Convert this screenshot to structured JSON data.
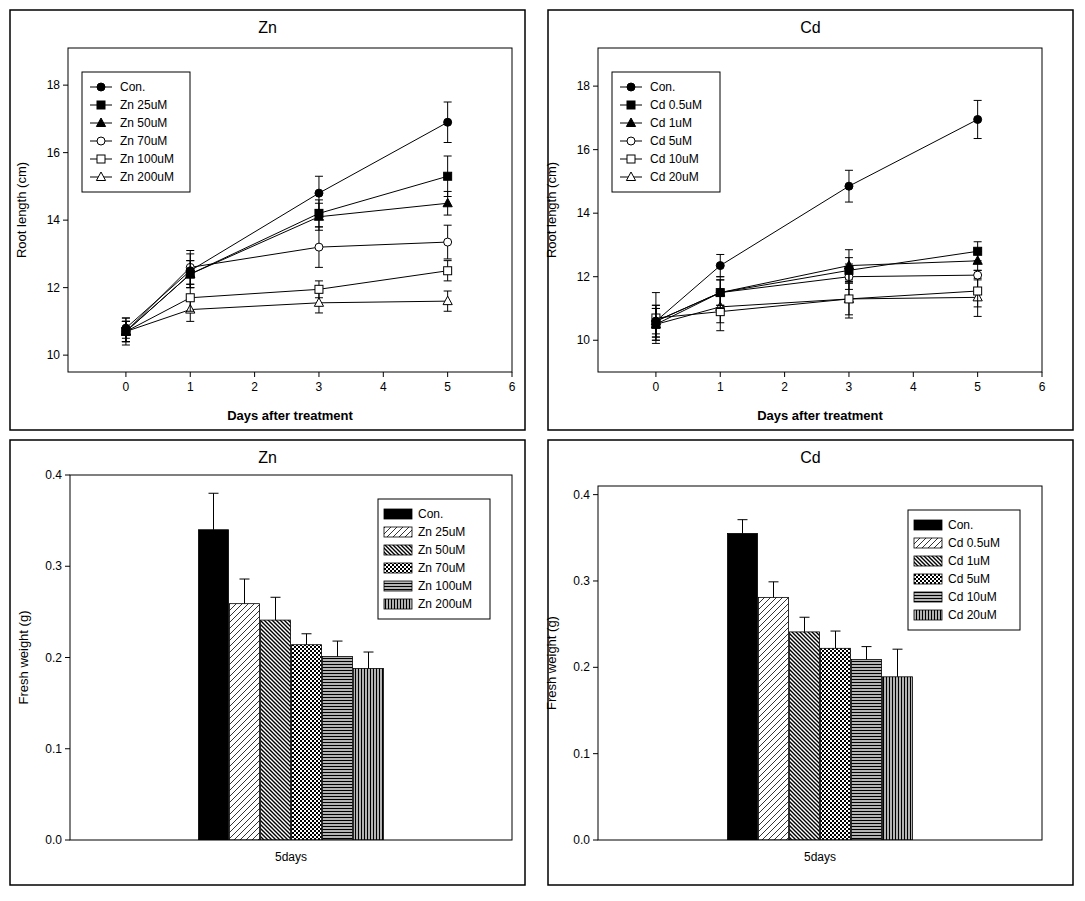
{
  "chart_data": [
    {
      "type": "line",
      "title": "Zn",
      "xlabel": "Days after treatment",
      "ylabel": "Root length (cm)",
      "x": [
        0,
        1,
        3,
        5
      ],
      "xlim": [
        -0.9,
        6
      ],
      "xticks": [
        0,
        1,
        2,
        3,
        4,
        5,
        6
      ],
      "ylim": [
        9.5,
        19.1
      ],
      "yticks": [
        10,
        12,
        14,
        16,
        18
      ],
      "legend": "upper left",
      "series": [
        {
          "name": "Con.",
          "color": "#000000",
          "marker": "circle",
          "values": [
            10.8,
            12.5,
            14.8,
            16.9
          ],
          "errors": [
            0.3,
            0.5,
            0.5,
            0.6
          ]
        },
        {
          "name": "Zn 25uM",
          "color": "#000000",
          "marker": "square",
          "values": [
            10.7,
            12.4,
            14.2,
            15.3
          ],
          "errors": [
            0.3,
            0.4,
            0.4,
            0.6
          ]
        },
        {
          "name": "Zn 50uM",
          "color": "#000000",
          "marker": "triangle",
          "values": [
            10.7,
            12.4,
            14.1,
            14.5
          ],
          "errors": [
            0.3,
            0.4,
            0.4,
            0.35
          ]
        },
        {
          "name": "Zn 70uM",
          "color": "#000000",
          "marker": "open-circle",
          "values": [
            10.7,
            12.6,
            13.2,
            13.35
          ],
          "errors": [
            0.3,
            0.5,
            0.6,
            0.5
          ]
        },
        {
          "name": "Zn 100uM",
          "color": "#000000",
          "marker": "open-square",
          "values": [
            10.7,
            11.7,
            11.95,
            12.5
          ],
          "errors": [
            0.3,
            0.4,
            0.25,
            0.3
          ]
        },
        {
          "name": "Zn 200uM",
          "color": "#000000",
          "marker": "open-triangle",
          "values": [
            10.7,
            11.35,
            11.55,
            11.6
          ],
          "errors": [
            0.4,
            0.35,
            0.3,
            0.3
          ]
        }
      ]
    },
    {
      "type": "line",
      "title": "Cd",
      "xlabel": "Days after treatment",
      "ylabel": "Root length (cm)",
      "x": [
        0,
        1,
        3,
        5
      ],
      "xlim": [
        -0.9,
        6
      ],
      "xticks": [
        0,
        1,
        2,
        3,
        4,
        5,
        6
      ],
      "ylim": [
        9,
        19.2
      ],
      "yticks": [
        10,
        12,
        14,
        16,
        18
      ],
      "legend": "upper left",
      "series": [
        {
          "name": "Con.",
          "color": "#000000",
          "marker": "circle",
          "values": [
            10.6,
            12.35,
            14.85,
            16.95
          ],
          "errors": [
            0.5,
            0.35,
            0.5,
            0.6
          ]
        },
        {
          "name": "Cd 0.5uM",
          "color": "#000000",
          "marker": "square",
          "values": [
            10.5,
            11.5,
            12.2,
            12.8
          ],
          "errors": [
            0.5,
            0.4,
            0.4,
            0.3
          ]
        },
        {
          "name": "Cd 1uM",
          "color": "#000000",
          "marker": "triangle",
          "values": [
            10.6,
            11.5,
            12.35,
            12.5
          ],
          "errors": [
            0.5,
            0.4,
            0.5,
            0.3
          ]
        },
        {
          "name": "Cd 5uM",
          "color": "#000000",
          "marker": "open-circle",
          "values": [
            10.6,
            11.5,
            12.0,
            12.05
          ],
          "errors": [
            0.4,
            0.5,
            0.4,
            0.15
          ]
        },
        {
          "name": "Cd 10uM",
          "color": "#000000",
          "marker": "open-square",
          "values": [
            10.7,
            10.9,
            11.3,
            11.55
          ],
          "errors": [
            0.8,
            0.6,
            0.5,
            0.5
          ]
        },
        {
          "name": "Cd 20uM",
          "color": "#000000",
          "marker": "open-triangle",
          "values": [
            10.5,
            11.05,
            11.3,
            11.35
          ],
          "errors": [
            0.5,
            0.5,
            0.6,
            0.6
          ]
        }
      ]
    },
    {
      "type": "bar",
      "title": "Zn",
      "ylabel": "Fresh weight (g)",
      "categories": [
        "5days"
      ],
      "ylim": [
        0,
        0.4
      ],
      "yticks": [
        {
          "value": 0,
          "label": "0.0"
        },
        {
          "value": 0.1,
          "label": "0.1"
        },
        {
          "value": 0.2,
          "label": "0.2"
        },
        {
          "value": 0.3,
          "label": "0.3"
        },
        {
          "value": 0.4,
          "label": "0.4"
        }
      ],
      "legend": "upper right",
      "series": [
        {
          "name": "Con.",
          "color": "#000000",
          "values": [
            0.34
          ],
          "errors": [
            0.04
          ]
        },
        {
          "name": "Zn 25uM",
          "color": "#000000",
          "values": [
            0.259
          ],
          "errors": [
            0.027
          ]
        },
        {
          "name": "Zn 50uM",
          "color": "#000000",
          "values": [
            0.241
          ],
          "errors": [
            0.025
          ]
        },
        {
          "name": "Zn 70uM",
          "color": "#000000",
          "values": [
            0.214
          ],
          "errors": [
            0.012
          ]
        },
        {
          "name": "Zn 100uM",
          "color": "#000000",
          "values": [
            0.201
          ],
          "errors": [
            0.017
          ]
        },
        {
          "name": "Zn 200uM",
          "color": "#000000",
          "values": [
            0.188
          ],
          "errors": [
            0.018
          ]
        }
      ]
    },
    {
      "type": "bar",
      "title": "Cd",
      "ylabel": "Fresh  weight (g)",
      "categories": [
        "5days"
      ],
      "ylim": [
        0,
        0.41
      ],
      "yticks": [
        {
          "value": 0,
          "label": "0.0"
        },
        {
          "value": 0.1,
          "label": "0.1"
        },
        {
          "value": 0.2,
          "label": "0.2"
        },
        {
          "value": 0.3,
          "label": "0.3"
        },
        {
          "value": 0.4,
          "label": "0.4"
        }
      ],
      "legend": "upper right",
      "series": [
        {
          "name": "Con.",
          "color": "#000000",
          "values": [
            0.355
          ],
          "errors": [
            0.016
          ]
        },
        {
          "name": "Cd 0.5uM",
          "color": "#000000",
          "values": [
            0.281
          ],
          "errors": [
            0.018
          ]
        },
        {
          "name": "Cd 1uM",
          "color": "#000000",
          "values": [
            0.241
          ],
          "errors": [
            0.017
          ]
        },
        {
          "name": "Cd 5uM",
          "color": "#000000",
          "values": [
            0.222
          ],
          "errors": [
            0.02
          ]
        },
        {
          "name": "Cd 10uM",
          "color": "#000000",
          "values": [
            0.209
          ],
          "errors": [
            0.015
          ]
        },
        {
          "name": "Cd 20uM",
          "color": "#000000",
          "values": [
            0.189
          ],
          "errors": [
            0.032
          ]
        }
      ]
    }
  ]
}
